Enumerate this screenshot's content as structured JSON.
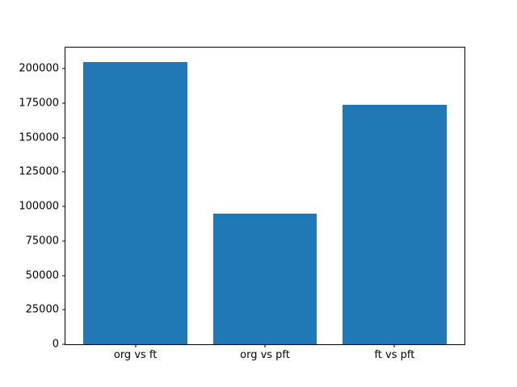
{
  "figure": {
    "background": "#ffffff",
    "axes_edge_color": "#000000",
    "tick_label_color": "#000000"
  },
  "chart_data": {
    "type": "bar",
    "title": "",
    "xlabel": "",
    "ylabel": "",
    "categories": [
      "org vs ft",
      "org vs pft",
      "ft vs pft"
    ],
    "values": [
      205000,
      95000,
      174000
    ],
    "bar_color": "#1f77b4",
    "bar_width_fraction": 0.8,
    "xlim": [
      -0.54,
      2.54
    ],
    "ylim": [
      0,
      215250
    ],
    "yticks": [
      0,
      25000,
      50000,
      75000,
      100000,
      125000,
      150000,
      175000,
      200000
    ],
    "ytick_labels": [
      "0",
      "25000",
      "50000",
      "75000",
      "100000",
      "125000",
      "150000",
      "175000",
      "200000"
    ],
    "grid": false,
    "legend_position": "none"
  }
}
